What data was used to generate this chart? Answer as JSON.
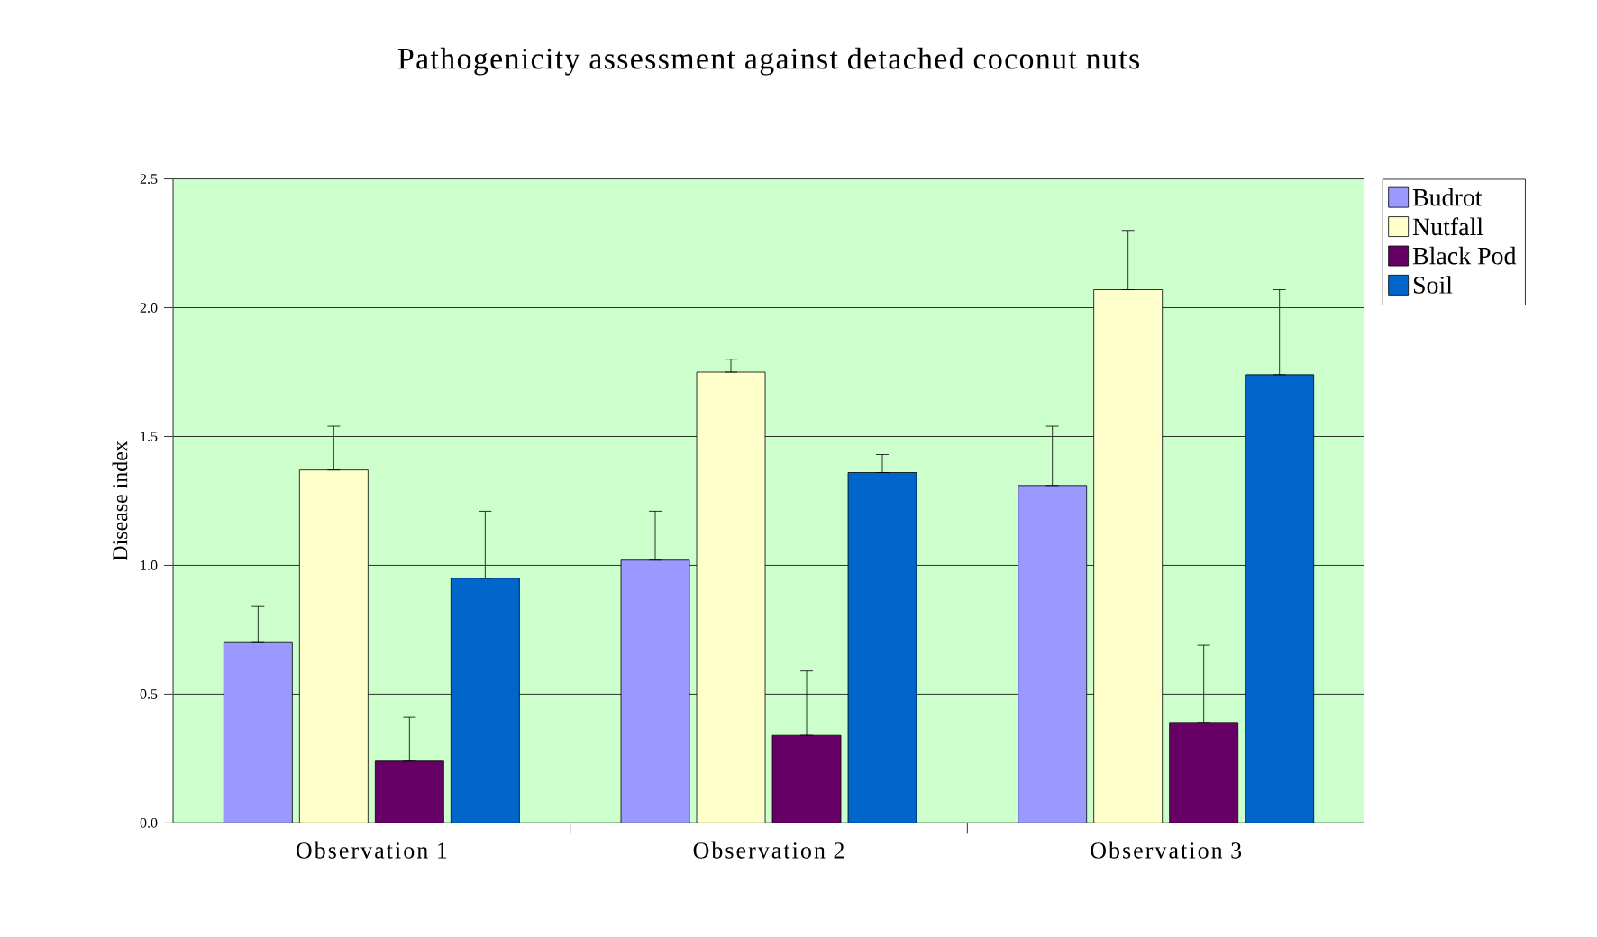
{
  "chart_data": {
    "type": "bar",
    "title": "Pathogenicity assessment against detached coconut nuts",
    "ylabel": "Disease index",
    "categories": [
      "Observation 1",
      "Observation 2",
      "Observation 3"
    ],
    "series": [
      {
        "name": "Budrot",
        "color": "#9999ff",
        "values": [
          0.7,
          1.02,
          1.31
        ],
        "errors": [
          [
            0.7,
            0.84
          ],
          [
            1.02,
            1.21
          ],
          [
            1.31,
            1.54
          ]
        ]
      },
      {
        "name": "Nutfall",
        "color": "#ffffcc",
        "values": [
          1.37,
          1.75,
          2.07
        ],
        "errors": [
          [
            1.37,
            1.54
          ],
          [
            1.75,
            1.8
          ],
          [
            2.07,
            2.3
          ]
        ]
      },
      {
        "name": "Black Pod",
        "color": "#660066",
        "values": [
          0.24,
          0.34,
          0.39
        ],
        "errors": [
          [
            0.24,
            0.41
          ],
          [
            0.34,
            0.59
          ],
          [
            0.39,
            0.69
          ]
        ]
      },
      {
        "name": "Soil",
        "color": "#0066cc",
        "values": [
          0.95,
          1.36,
          1.74
        ],
        "errors": [
          [
            0.95,
            1.21
          ],
          [
            1.36,
            1.43
          ],
          [
            1.74,
            2.07
          ]
        ]
      }
    ],
    "ylim": [
      0,
      2.5
    ],
    "yticks": [
      {
        "value": 0,
        "label": "0.0"
      },
      {
        "value": 0.5,
        "label": "0.5"
      },
      {
        "value": 1.0,
        "label": "1.0"
      },
      {
        "value": 1.5,
        "label": "1.5"
      },
      {
        "value": 2.0,
        "label": "2.0"
      },
      {
        "value": 2.5,
        "label": "2.5"
      }
    ],
    "grid": "y",
    "legend": "top right"
  }
}
